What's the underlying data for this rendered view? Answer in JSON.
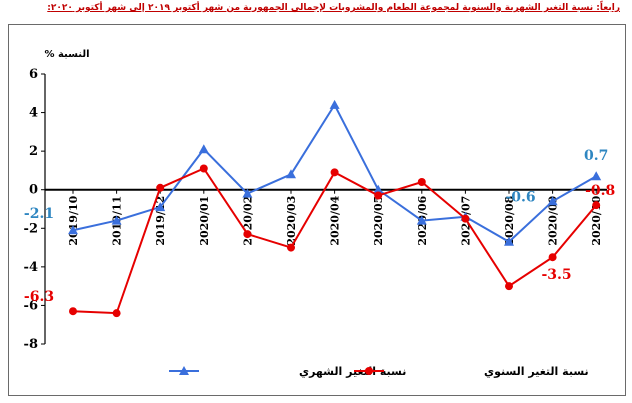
{
  "title": "رابعاً: نسبة التغير الشهرية والسنوية لمجموعة الطعام والمشروبات لإجمالي الجمهورية من شهر أكتوبر ٢٠١٩ إلى شهر أكتوبر ٢٠٢٠:",
  "chart_data": {
    "type": "line",
    "ylabel": "النسبة %",
    "xlabel": "",
    "ylim": [
      -8,
      6
    ],
    "yticks": [
      6,
      4,
      2,
      0,
      -2,
      -4,
      -6,
      -8
    ],
    "categories": [
      "2019/10",
      "2019/11",
      "2019/12",
      "2020/01",
      "2020/02",
      "2020/03",
      "2020/04",
      "2020/05",
      "2020/06",
      "2020/07",
      "2020/08",
      "2020/09",
      "2020/10"
    ],
    "grid": false,
    "legend_position": "bottom",
    "series": [
      {
        "name": "نسبة التغير الشهري",
        "color": "#3a6fdc",
        "marker": "triangle",
        "values": [
          -2.1,
          -1.6,
          -0.9,
          2.1,
          -0.2,
          0.8,
          4.4,
          0.0,
          -1.6,
          -1.4,
          -2.7,
          -0.6,
          0.7
        ]
      },
      {
        "name": "نسبة التغير السنوي",
        "color": "#e60000",
        "marker": "circle",
        "values": [
          -6.3,
          -6.4,
          0.1,
          1.1,
          -2.3,
          -3.0,
          0.9,
          -0.3,
          0.4,
          -1.5,
          -5.0,
          -3.5,
          -0.8
        ]
      }
    ],
    "data_labels": [
      {
        "text": "-2.1",
        "series": 0,
        "index": 0,
        "color": "#2e86c1"
      },
      {
        "text": "0.7",
        "series": 0,
        "index": 12,
        "color": "#2e86c1"
      },
      {
        "text": "-0.6",
        "series": 0,
        "index": 11,
        "color": "#2e86c1"
      },
      {
        "text": "-6.3",
        "series": 1,
        "index": 0,
        "color": "#e60000"
      },
      {
        "text": "-3.5",
        "series": 1,
        "index": 11,
        "color": "#e60000"
      },
      {
        "text": "-0.8",
        "series": 1,
        "index": 12,
        "color": "#e60000"
      }
    ]
  }
}
